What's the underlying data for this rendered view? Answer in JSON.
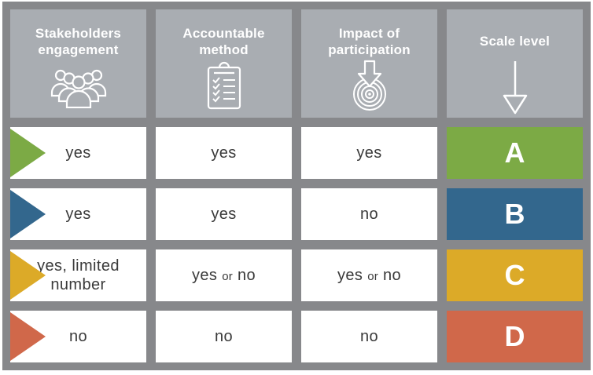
{
  "palette": {
    "frame_gray": "#87888b",
    "header_gray": "#a9adb2",
    "cell_white": "#ffffff",
    "body_text": "#3a3a3a",
    "header_text": "#ffffff"
  },
  "columns": [
    {
      "label": "Stakeholders engagement",
      "icon": "people-group-icon"
    },
    {
      "label": "Accountable method",
      "icon": "clipboard-checklist-icon"
    },
    {
      "label": "Impact of participation",
      "icon": "target-impact-icon"
    },
    {
      "label": "Scale level",
      "icon": "down-arrow-icon"
    }
  ],
  "rows": [
    {
      "level": "A",
      "color": "#7caa45",
      "stakeholders": "yes",
      "accountable": "yes",
      "impact": "yes"
    },
    {
      "level": "B",
      "color": "#33678d",
      "stakeholders": "yes",
      "accountable": "yes",
      "impact": "no"
    },
    {
      "level": "C",
      "color": "#dcaa28",
      "stakeholders": "yes, limited number",
      "accountable": "yes or no",
      "impact": "yes or no"
    },
    {
      "level": "D",
      "color": "#d0684a",
      "stakeholders": "no",
      "accountable": "no",
      "impact": "no"
    }
  ]
}
